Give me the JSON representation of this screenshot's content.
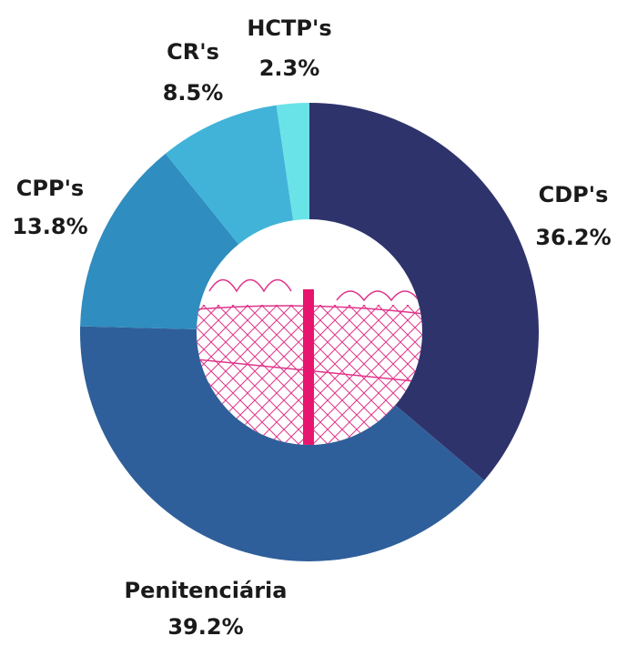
{
  "chart_data": {
    "type": "pie",
    "donut": true,
    "categories": [
      "CDP's",
      "Penitenciária",
      "CPP's",
      "CR's",
      "HCTP's"
    ],
    "values": [
      36.2,
      39.2,
      13.8,
      8.5,
      2.3
    ],
    "value_labels": [
      "36.2%",
      "39.2%",
      "13.8%",
      "8.5%",
      "2.3%"
    ],
    "colors": [
      "#2f336b",
      "#2f5f9a",
      "#2f8dbf",
      "#42b3d8",
      "#6ae3e8"
    ]
  }
}
